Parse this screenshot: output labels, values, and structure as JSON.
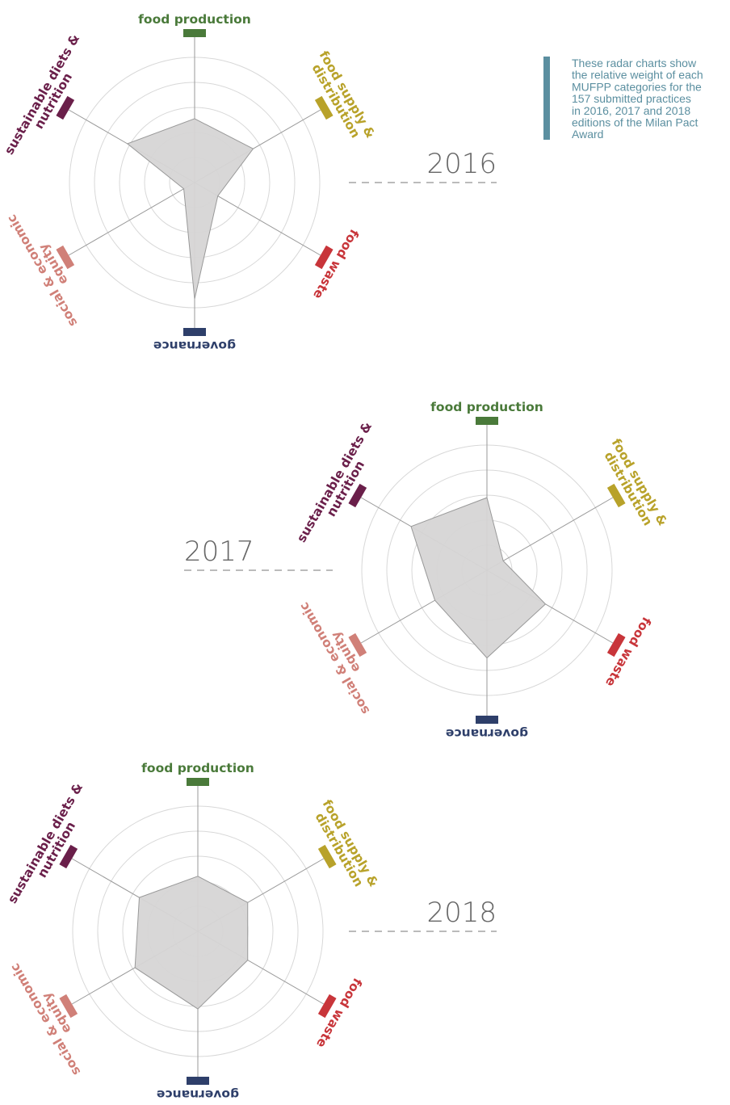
{
  "note": [
    "These radar charts show",
    "the relative weight of each",
    "MUFPP categories for the",
    "157 submitted practices",
    "in 2016, 2017 and 2018",
    "editions of the Milan Pact",
    "Award"
  ],
  "chart_data": [
    {
      "type": "radar",
      "title": "2016",
      "categories": [
        [
          "food production"
        ],
        [
          "food supply &",
          "distribution"
        ],
        [
          "food waste"
        ],
        [
          "governance"
        ],
        [
          "social & economic",
          "equity"
        ],
        [
          "sustainable diets &",
          "nutrition"
        ]
      ],
      "colors": [
        "#4a7a3a",
        "#b8a22a",
        "#c8353a",
        "#2e3f6a",
        "#d08078",
        "#6a1f4a"
      ],
      "values": [
        2.55,
        2.7,
        1.07,
        4.65,
        0.5,
        3.1
      ],
      "color": "#d6d5d5",
      "rlim": [
        0,
        5
      ],
      "rticks": [
        1,
        2,
        3,
        4,
        5
      ],
      "grid": true
    },
    {
      "type": "radar",
      "title": "2017",
      "categories": [
        [
          "food production"
        ],
        [
          "food supply &",
          "distribution"
        ],
        [
          "food waste"
        ],
        [
          "governance"
        ],
        [
          "social & economic",
          "equity"
        ],
        [
          "sustainable diets &",
          "nutrition"
        ]
      ],
      "colors": [
        "#4a7a3a",
        "#b8a22a",
        "#c8353a",
        "#2e3f6a",
        "#d08078",
        "#6a1f4a"
      ],
      "values": [
        2.9,
        0.75,
        2.7,
        3.5,
        2.4,
        3.5
      ],
      "color": "#d6d5d5",
      "rlim": [
        0,
        5
      ],
      "rticks": [
        1,
        2,
        3,
        4,
        5
      ],
      "grid": true
    },
    {
      "type": "radar",
      "title": "2018",
      "categories": [
        [
          "food production"
        ],
        [
          "food supply &",
          "distribution"
        ],
        [
          "food waste"
        ],
        [
          "governance"
        ],
        [
          "social & economic",
          "equity"
        ],
        [
          "sustainable diets &",
          "nutrition"
        ]
      ],
      "colors": [
        "#4a7a3a",
        "#b8a22a",
        "#c8353a",
        "#2e3f6a",
        "#d08078",
        "#6a1f4a"
      ],
      "values": [
        2.2,
        2.3,
        2.3,
        3.1,
        2.9,
        2.7
      ],
      "color": "#d6d5d5",
      "rlim": [
        0,
        5
      ],
      "rticks": [
        1,
        2,
        3,
        4,
        5
      ],
      "grid": true
    }
  ]
}
